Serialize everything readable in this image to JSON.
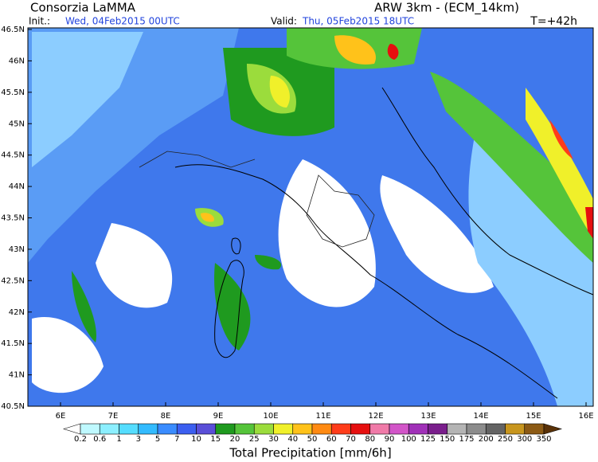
{
  "header": {
    "title": "Consorzia LaMMA",
    "model": "ARW 3km - (ECM_14km)",
    "init_label": "Init.:",
    "init": "Wed, 04Feb2015 00UTC",
    "valid_label": "Valid:",
    "valid": "Thu, 05Feb2015 18UTC",
    "lead": "T=+42h"
  },
  "map": {
    "lat_labels": [
      "46.5N",
      "46N",
      "45.5N",
      "45N",
      "44.5N",
      "44N",
      "43.5N",
      "43N",
      "42.5N",
      "42N",
      "41.5N",
      "41N",
      "40.5N"
    ],
    "lon_labels": [
      "6E",
      "7E",
      "8E",
      "9E",
      "10E",
      "11E",
      "12E",
      "13E",
      "14E",
      "15E",
      "16E"
    ]
  },
  "colorbar": {
    "labels": [
      "0.2",
      "0.6",
      "1",
      "3",
      "5",
      "7",
      "10",
      "15",
      "20",
      "25",
      "30",
      "40",
      "50",
      "60",
      "70",
      "80",
      "90",
      "100",
      "125",
      "150",
      "175",
      "200",
      "250",
      "300",
      "350"
    ],
    "colors": [
      "#ffffff",
      "#bff9ff",
      "#8cefff",
      "#55ddff",
      "#33bbff",
      "#3a8cff",
      "#3c5ff0",
      "#5a4fd8",
      "#1f9a1f",
      "#55c43a",
      "#9bdc3c",
      "#f0f02a",
      "#ffc21a",
      "#ff8a12",
      "#ff3c1a",
      "#e60f0f",
      "#f07aa8",
      "#d255c8",
      "#a030b8",
      "#7a1e8c",
      "#b4b4b4",
      "#8c8c8c",
      "#646464",
      "#c8961e",
      "#8c5a14",
      "#5a3208"
    ],
    "title": "Total Precipitation [mm/6h]"
  }
}
